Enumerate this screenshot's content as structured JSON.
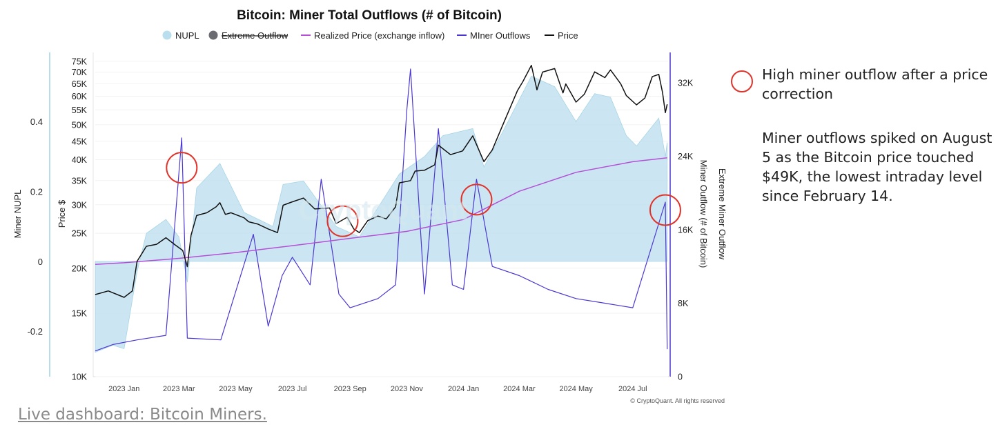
{
  "chart_data": {
    "type": "line",
    "title": "Bitcoin: Miner Total Outflows (# of Bitcoin)",
    "legend": {
      "placement": "top",
      "items": [
        {
          "name": "NUPL",
          "color": "#b9deed",
          "marker": "circle"
        },
        {
          "name": "Extreme Outflow",
          "color": "#6b6b72",
          "marker": "circle",
          "disabled": true
        },
        {
          "name": "Realized Price (exchange inflow)",
          "color": "#b44fd6",
          "marker": "line"
        },
        {
          "name": "MIner Outflows",
          "color": "#4a37d1",
          "marker": "line"
        },
        {
          "name": "Price",
          "color": "#111111",
          "marker": "line"
        }
      ]
    },
    "x_ticks": [
      "2023 Jan",
      "2023 Mar",
      "2023 May",
      "2023 Jul",
      "2023 Sep",
      "2023 Nov",
      "2024 Jan",
      "2024 Mar",
      "2024 May",
      "2024 Jul"
    ],
    "x_range": [
      "2022-12-01",
      "2024-08-08"
    ],
    "axes": {
      "left_nupl": {
        "label": "Miner NUPL",
        "ticks": [
          "0.4",
          "0.2",
          "0",
          "-0.2"
        ],
        "range": [
          -0.33,
          0.59
        ]
      },
      "left_price": {
        "label": "Price $",
        "scale": "log",
        "range": [
          10000,
          78000
        ],
        "ticks": [
          {
            "label": "75K",
            "value": 75000
          },
          {
            "label": "70K",
            "value": 70000
          },
          {
            "label": "65K",
            "value": 65000
          },
          {
            "label": "60K",
            "value": 60000
          },
          {
            "label": "55K",
            "value": 55000
          },
          {
            "label": "50K",
            "value": 50000
          },
          {
            "label": "45K",
            "value": 45000
          },
          {
            "label": "40K",
            "value": 40000
          },
          {
            "label": "35K",
            "value": 35000
          },
          {
            "label": "30K",
            "value": 30000
          },
          {
            "label": "25K",
            "value": 25000
          },
          {
            "label": "20K",
            "value": 20000
          },
          {
            "label": "15K",
            "value": 15000
          },
          {
            "label": "10K",
            "value": 10000
          }
        ]
      },
      "right_outflow": {
        "label": "Miner Outflow (# of Bitcoin)",
        "ticks": [
          "32K",
          "24K",
          "16K",
          "8K",
          "0"
        ],
        "range": [
          0,
          35000
        ]
      },
      "right_extreme": {
        "label": "Extreme Miner Outflow"
      }
    },
    "grid": true,
    "series": [
      {
        "name": "Price",
        "color": "#111111",
        "points": [
          [
            "2022-12-01",
            16900
          ],
          [
            "2022-12-15",
            17300
          ],
          [
            "2023-01-01",
            16600
          ],
          [
            "2023-01-10",
            17300
          ],
          [
            "2023-01-15",
            20900
          ],
          [
            "2023-01-25",
            23000
          ],
          [
            "2023-02-05",
            23300
          ],
          [
            "2023-02-15",
            24300
          ],
          [
            "2023-02-25",
            23200
          ],
          [
            "2023-03-05",
            22400
          ],
          [
            "2023-03-10",
            20200
          ],
          [
            "2023-03-14",
            24700
          ],
          [
            "2023-03-20",
            28000
          ],
          [
            "2023-03-31",
            28500
          ],
          [
            "2023-04-10",
            29600
          ],
          [
            "2023-04-14",
            30400
          ],
          [
            "2023-04-20",
            28200
          ],
          [
            "2023-04-26",
            28500
          ],
          [
            "2023-05-10",
            27600
          ],
          [
            "2023-05-15",
            26900
          ],
          [
            "2023-05-25",
            26500
          ],
          [
            "2023-06-05",
            25700
          ],
          [
            "2023-06-15",
            25100
          ],
          [
            "2023-06-21",
            29900
          ],
          [
            "2023-06-30",
            30500
          ],
          [
            "2023-07-13",
            31300
          ],
          [
            "2023-07-25",
            29200
          ],
          [
            "2023-08-10",
            29400
          ],
          [
            "2023-08-17",
            26600
          ],
          [
            "2023-08-29",
            27700
          ],
          [
            "2023-09-05",
            25700
          ],
          [
            "2023-09-11",
            25100
          ],
          [
            "2023-09-20",
            27100
          ],
          [
            "2023-10-01",
            27900
          ],
          [
            "2023-10-10",
            27400
          ],
          [
            "2023-10-20",
            29600
          ],
          [
            "2023-10-24",
            34500
          ],
          [
            "2023-11-05",
            35000
          ],
          [
            "2023-11-10",
            37200
          ],
          [
            "2023-11-20",
            37400
          ],
          [
            "2023-12-01",
            38700
          ],
          [
            "2023-12-05",
            43900
          ],
          [
            "2023-12-18",
            41300
          ],
          [
            "2023-12-31",
            42300
          ],
          [
            "2024-01-11",
            46600
          ],
          [
            "2024-01-23",
            39500
          ],
          [
            "2024-02-01",
            42600
          ],
          [
            "2024-02-12",
            49800
          ],
          [
            "2024-02-28",
            62200
          ],
          [
            "2024-03-05",
            66000
          ],
          [
            "2024-03-14",
            73100
          ],
          [
            "2024-03-20",
            62500
          ],
          [
            "2024-03-26",
            70000
          ],
          [
            "2024-04-08",
            71600
          ],
          [
            "2024-04-17",
            61300
          ],
          [
            "2024-04-20",
            64900
          ],
          [
            "2024-05-01",
            57800
          ],
          [
            "2024-05-10",
            60800
          ],
          [
            "2024-05-21",
            70100
          ],
          [
            "2024-06-01",
            67600
          ],
          [
            "2024-06-07",
            71000
          ],
          [
            "2024-06-18",
            65000
          ],
          [
            "2024-06-24",
            60300
          ],
          [
            "2024-07-05",
            56800
          ],
          [
            "2024-07-14",
            59300
          ],
          [
            "2024-07-22",
            68000
          ],
          [
            "2024-07-29",
            69000
          ],
          [
            "2024-08-02",
            61500
          ],
          [
            "2024-08-05",
            54000
          ],
          [
            "2024-08-07",
            57000
          ]
        ]
      },
      {
        "name": "Realized Price (exchange inflow)",
        "color": "#b44fd6",
        "points": [
          [
            "2022-12-01",
            20500
          ],
          [
            "2023-01-01",
            20700
          ],
          [
            "2023-03-01",
            21300
          ],
          [
            "2023-05-01",
            22100
          ],
          [
            "2023-07-01",
            23100
          ],
          [
            "2023-09-01",
            24200
          ],
          [
            "2023-11-01",
            25300
          ],
          [
            "2024-01-01",
            27300
          ],
          [
            "2024-03-01",
            32700
          ],
          [
            "2024-05-01",
            36900
          ],
          [
            "2024-07-01",
            39500
          ],
          [
            "2024-08-07",
            40500
          ]
        ]
      },
      {
        "name": "NUPL",
        "color": "#b9deed",
        "points": [
          [
            "2022-12-01",
            -0.26
          ],
          [
            "2022-12-20",
            -0.24
          ],
          [
            "2023-01-01",
            -0.25
          ],
          [
            "2023-01-15",
            -0.03
          ],
          [
            "2023-01-25",
            0.08
          ],
          [
            "2023-02-15",
            0.12
          ],
          [
            "2023-03-01",
            0.07
          ],
          [
            "2023-03-10",
            -0.06
          ],
          [
            "2023-03-20",
            0.21
          ],
          [
            "2023-04-14",
            0.28
          ],
          [
            "2023-05-10",
            0.14
          ],
          [
            "2023-06-10",
            0.1
          ],
          [
            "2023-06-21",
            0.22
          ],
          [
            "2023-07-13",
            0.23
          ],
          [
            "2023-08-17",
            0.1
          ],
          [
            "2023-09-11",
            0.07
          ],
          [
            "2023-10-24",
            0.25
          ],
          [
            "2023-11-20",
            0.3
          ],
          [
            "2023-12-10",
            0.36
          ],
          [
            "2024-01-11",
            0.38
          ],
          [
            "2024-01-23",
            0.27
          ],
          [
            "2024-02-12",
            0.37
          ],
          [
            "2024-03-14",
            0.53
          ],
          [
            "2024-04-08",
            0.5
          ],
          [
            "2024-05-01",
            0.4
          ],
          [
            "2024-05-21",
            0.48
          ],
          [
            "2024-06-07",
            0.47
          ],
          [
            "2024-06-24",
            0.36
          ],
          [
            "2024-07-05",
            0.33
          ],
          [
            "2024-07-29",
            0.41
          ],
          [
            "2024-08-05",
            0.3
          ],
          [
            "2024-08-07",
            0.34
          ]
        ]
      },
      {
        "name": "MIner Outflows",
        "color": "#4a37d1",
        "points": [
          [
            "2022-12-01",
            2800
          ],
          [
            "2022-12-20",
            3500
          ],
          [
            "2023-01-15",
            4000
          ],
          [
            "2023-02-15",
            4500
          ],
          [
            "2023-03-04",
            26000
          ],
          [
            "2023-03-10",
            4200
          ],
          [
            "2023-04-15",
            4000
          ],
          [
            "2023-05-20",
            15500
          ],
          [
            "2023-06-05",
            5500
          ],
          [
            "2023-06-20",
            11000
          ],
          [
            "2023-07-01",
            13000
          ],
          [
            "2023-07-20",
            10000
          ],
          [
            "2023-08-01",
            21500
          ],
          [
            "2023-08-20",
            9000
          ],
          [
            "2023-09-01",
            7500
          ],
          [
            "2023-10-01",
            8500
          ],
          [
            "2023-10-20",
            10000
          ],
          [
            "2023-11-01",
            29000
          ],
          [
            "2023-11-05",
            33500
          ],
          [
            "2023-11-20",
            9000
          ],
          [
            "2023-12-05",
            27000
          ],
          [
            "2023-12-20",
            10000
          ],
          [
            "2024-01-01",
            9500
          ],
          [
            "2024-01-15",
            21500
          ],
          [
            "2024-02-01",
            12000
          ],
          [
            "2024-03-01",
            11000
          ],
          [
            "2024-04-01",
            9500
          ],
          [
            "2024-05-01",
            8500
          ],
          [
            "2024-06-01",
            8000
          ],
          [
            "2024-07-01",
            7500
          ],
          [
            "2024-08-05",
            19000
          ],
          [
            "2024-08-07",
            3000
          ]
        ]
      }
    ],
    "annotations": [
      {
        "type": "circle",
        "date": "2023-03-04",
        "value": 38000
      },
      {
        "type": "circle",
        "date": "2023-08-24",
        "value": 27000
      },
      {
        "type": "circle",
        "date": "2024-01-15",
        "value": 31000
      },
      {
        "type": "circle",
        "date": "2024-08-05",
        "value": 29000
      }
    ],
    "watermark": "CryptoQuant",
    "copyright": "© CryptoQuant. All rights reserved"
  },
  "notes": {
    "legend_text": "High miner outflow after a price correction",
    "body": "Miner outflows spiked on August 5 as the Bitcoin price touched $49K, the lowest intraday level since February 14."
  },
  "footer": {
    "link_text": "Live dashboard: Bitcoin Miners."
  }
}
